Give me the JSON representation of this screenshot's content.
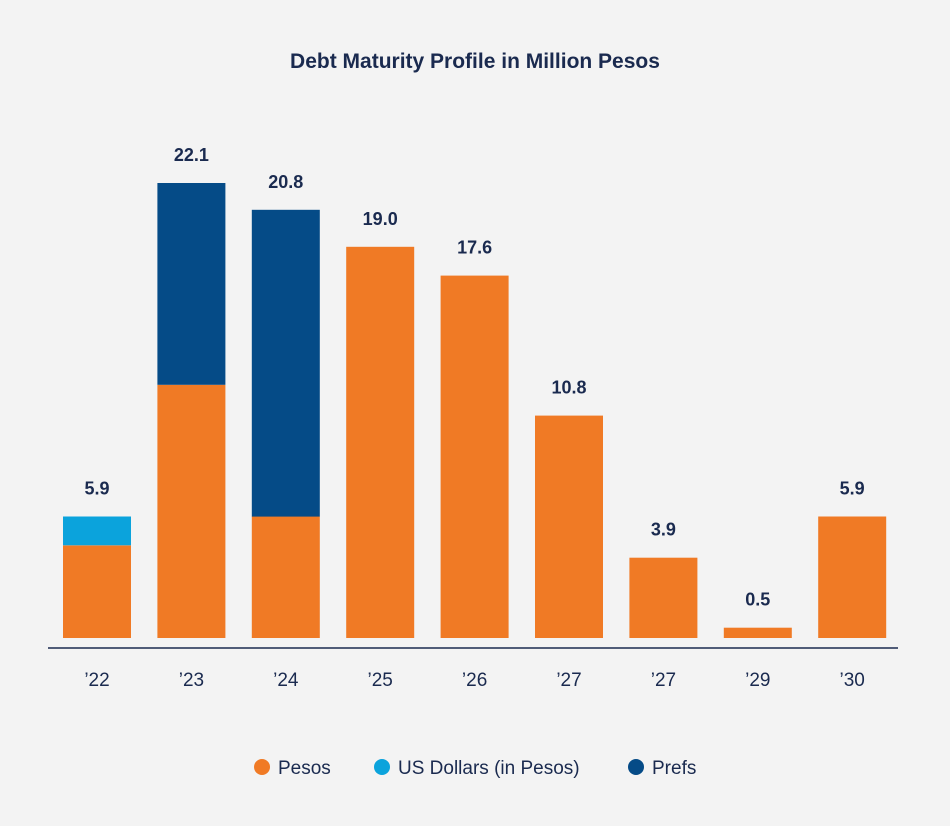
{
  "chart_data": {
    "type": "bar",
    "stacked": true,
    "title": "Debt Maturity Profile in Million Pesos",
    "xlabel": "",
    "ylabel": "",
    "ylim": [
      0,
      22.1
    ],
    "grid": false,
    "legend_position": "bottom-center",
    "categories": [
      "’22",
      "’23",
      "’24",
      "’25",
      "’26",
      "’27",
      "’27",
      "’29",
      "’30"
    ],
    "totals": [
      "5.9",
      "22.1",
      "20.8",
      "19.0",
      "17.6",
      "10.8",
      "3.9",
      "0.5",
      "5.9"
    ],
    "series": [
      {
        "name": "Pesos",
        "color": "#f07a25",
        "values": [
          4.5,
          12.3,
          5.9,
          19.0,
          17.6,
          10.8,
          3.9,
          0.5,
          5.9
        ]
      },
      {
        "name": "US Dollars (in Pesos)",
        "color": "#0ba3dc",
        "values": [
          1.4,
          0,
          0,
          0,
          0,
          0,
          0,
          0,
          0
        ]
      },
      {
        "name": "Prefs",
        "color": "#054b87",
        "values": [
          0,
          9.8,
          14.9,
          0,
          0,
          0,
          0,
          0,
          0
        ]
      }
    ]
  }
}
